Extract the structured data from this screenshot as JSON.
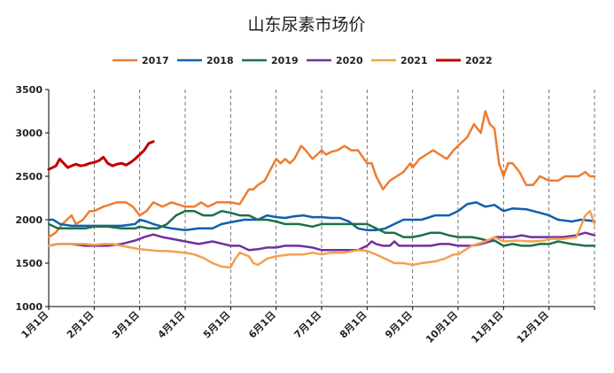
{
  "chart_data": {
    "type": "line",
    "title": "山东尿素市场价",
    "xlabel": "",
    "ylabel": "",
    "ylim": [
      1000,
      3500
    ],
    "yticks": [
      1000,
      1500,
      2000,
      2500,
      3000,
      3500
    ],
    "xlim_month": [
      1,
      13
    ],
    "grid": "vertical dashed at month starts",
    "legend_position": "top-center",
    "categories": [
      "1月1日",
      "2月1日",
      "3月1日",
      "4月1日",
      "5月1日",
      "6月1日",
      "7月1日",
      "8月1日",
      "9月1日",
      "10月1日",
      "11月1日",
      "12月1日"
    ],
    "series": [
      {
        "name": "2017",
        "color": "#ED7D31",
        "x": [
          1.0,
          1.15,
          1.3,
          1.5,
          1.6,
          1.75,
          1.9,
          2.0,
          2.2,
          2.5,
          2.7,
          2.85,
          3.0,
          3.15,
          3.3,
          3.5,
          3.7,
          4.0,
          4.2,
          4.35,
          4.5,
          4.7,
          5.0,
          5.2,
          5.4,
          5.5,
          5.6,
          5.75,
          5.9,
          6.0,
          6.1,
          6.2,
          6.3,
          6.4,
          6.55,
          6.65,
          6.8,
          6.9,
          7.0,
          7.1,
          7.2,
          7.35,
          7.5,
          7.65,
          7.8,
          8.0,
          8.1,
          8.2,
          8.35,
          8.5,
          8.65,
          8.8,
          8.95,
          9.0,
          9.15,
          9.3,
          9.45,
          9.6,
          9.75,
          9.9,
          10.0,
          10.2,
          10.35,
          10.5,
          10.6,
          10.7,
          10.8,
          10.9,
          11.0,
          11.1,
          11.2,
          11.35,
          11.5,
          11.65,
          11.8,
          12.0,
          12.2,
          12.35,
          12.5,
          12.65,
          12.8,
          12.9,
          13.0
        ],
        "values": [
          1800,
          1850,
          1950,
          2050,
          1950,
          2000,
          2100,
          2100,
          2150,
          2200,
          2200,
          2150,
          2050,
          2100,
          2200,
          2150,
          2200,
          2150,
          2150,
          2200,
          2150,
          2200,
          2200,
          2180,
          2350,
          2350,
          2400,
          2450,
          2600,
          2700,
          2650,
          2700,
          2650,
          2700,
          2850,
          2800,
          2700,
          2750,
          2800,
          2750,
          2780,
          2800,
          2850,
          2800,
          2800,
          2650,
          2650,
          2500,
          2350,
          2450,
          2500,
          2550,
          2650,
          2600,
          2700,
          2750,
          2800,
          2750,
          2700,
          2800,
          2850,
          2950,
          3100,
          3000,
          3250,
          3100,
          3050,
          2650,
          2500,
          2650,
          2650,
          2550,
          2400,
          2400,
          2500,
          2450,
          2450,
          2500,
          2500,
          2500,
          2550,
          2500,
          2500
        ]
      },
      {
        "name": "2018",
        "color": "#0F5FB0",
        "x": [
          1.0,
          1.1,
          1.25,
          1.5,
          1.75,
          2.0,
          2.3,
          2.6,
          2.9,
          3.0,
          3.15,
          3.3,
          3.5,
          3.7,
          4.0,
          4.3,
          4.6,
          4.8,
          5.0,
          5.3,
          5.6,
          5.8,
          6.0,
          6.2,
          6.4,
          6.6,
          6.8,
          7.0,
          7.2,
          7.4,
          7.6,
          7.8,
          8.0,
          8.2,
          8.4,
          8.6,
          8.8,
          9.0,
          9.2,
          9.5,
          9.8,
          10.0,
          10.2,
          10.4,
          10.6,
          10.8,
          11.0,
          11.2,
          11.5,
          11.8,
          12.0,
          12.2,
          12.5,
          12.7,
          12.9,
          13.0
        ],
        "values": [
          2000,
          2000,
          1950,
          1930,
          1930,
          1930,
          1930,
          1930,
          1950,
          2000,
          1980,
          1950,
          1920,
          1900,
          1880,
          1900,
          1900,
          1950,
          1970,
          2000,
          2000,
          2050,
          2030,
          2020,
          2040,
          2050,
          2030,
          2030,
          2020,
          2020,
          1980,
          1900,
          1880,
          1880,
          1900,
          1950,
          2000,
          2000,
          2000,
          2050,
          2050,
          2100,
          2180,
          2200,
          2150,
          2170,
          2100,
          2130,
          2120,
          2080,
          2050,
          2000,
          1980,
          2000,
          1990,
          1980
        ]
      },
      {
        "name": "2019",
        "color": "#1E7145",
        "x": [
          1.0,
          1.2,
          1.5,
          1.8,
          2.0,
          2.3,
          2.6,
          2.9,
          3.0,
          3.2,
          3.4,
          3.6,
          3.8,
          4.0,
          4.2,
          4.4,
          4.6,
          4.8,
          5.0,
          5.2,
          5.4,
          5.6,
          5.8,
          6.0,
          6.2,
          6.5,
          6.8,
          7.0,
          7.3,
          7.6,
          7.8,
          8.0,
          8.2,
          8.4,
          8.6,
          8.8,
          9.0,
          9.2,
          9.4,
          9.6,
          9.8,
          10.0,
          10.3,
          10.5,
          10.7,
          10.8,
          11.0,
          11.2,
          11.4,
          11.6,
          11.8,
          12.0,
          12.2,
          12.5,
          12.8,
          13.0
        ],
        "values": [
          1950,
          1900,
          1900,
          1900,
          1920,
          1920,
          1900,
          1900,
          1920,
          1900,
          1900,
          1950,
          2050,
          2100,
          2100,
          2050,
          2050,
          2100,
          2080,
          2050,
          2050,
          2000,
          2000,
          1980,
          1950,
          1950,
          1920,
          1950,
          1950,
          1950,
          1950,
          1950,
          1900,
          1850,
          1850,
          1800,
          1800,
          1820,
          1850,
          1850,
          1820,
          1800,
          1800,
          1780,
          1750,
          1760,
          1700,
          1720,
          1700,
          1700,
          1720,
          1720,
          1750,
          1720,
          1700,
          1700
        ]
      },
      {
        "name": "2020",
        "color": "#7030A0",
        "x": [
          1.0,
          1.2,
          1.5,
          1.8,
          2.0,
          2.3,
          2.6,
          2.9,
          3.0,
          3.1,
          3.3,
          3.5,
          3.8,
          4.0,
          4.3,
          4.6,
          5.0,
          5.2,
          5.4,
          5.6,
          5.8,
          6.0,
          6.2,
          6.5,
          6.8,
          7.0,
          7.3,
          7.6,
          7.8,
          8.0,
          8.1,
          8.2,
          8.35,
          8.5,
          8.6,
          8.7,
          8.85,
          9.0,
          9.2,
          9.4,
          9.6,
          9.8,
          10.0,
          10.3,
          10.5,
          10.7,
          10.8,
          11.0,
          11.2,
          11.4,
          11.6,
          11.8,
          12.0,
          12.3,
          12.6,
          12.8,
          13.0
        ],
        "values": [
          1700,
          1720,
          1720,
          1700,
          1700,
          1700,
          1720,
          1760,
          1780,
          1800,
          1830,
          1800,
          1770,
          1750,
          1720,
          1750,
          1700,
          1700,
          1650,
          1660,
          1680,
          1680,
          1700,
          1700,
          1680,
          1650,
          1650,
          1650,
          1650,
          1700,
          1750,
          1720,
          1700,
          1700,
          1750,
          1700,
          1700,
          1700,
          1700,
          1700,
          1720,
          1720,
          1700,
          1700,
          1720,
          1750,
          1800,
          1800,
          1800,
          1820,
          1800,
          1800,
          1800,
          1800,
          1820,
          1850,
          1820
        ]
      },
      {
        "name": "2021",
        "color": "#F4A04E",
        "x": [
          1.0,
          1.2,
          1.4,
          1.6,
          1.8,
          2.0,
          2.2,
          2.4,
          2.6,
          2.8,
          3.0,
          3.2,
          3.4,
          3.6,
          3.8,
          4.0,
          4.2,
          4.4,
          4.6,
          4.8,
          5.0,
          5.1,
          5.2,
          5.4,
          5.5,
          5.6,
          5.8,
          6.0,
          6.3,
          6.6,
          6.8,
          7.0,
          7.2,
          7.5,
          7.8,
          8.0,
          8.2,
          8.4,
          8.6,
          8.8,
          9.0,
          9.2,
          9.5,
          9.7,
          9.9,
          10.0,
          10.3,
          10.6,
          10.8,
          11.0,
          11.3,
          11.6,
          11.9,
          12.0,
          12.3,
          12.6,
          12.8,
          12.9,
          13.0
        ],
        "values": [
          1700,
          1720,
          1720,
          1720,
          1720,
          1710,
          1720,
          1720,
          1700,
          1680,
          1660,
          1650,
          1640,
          1640,
          1630,
          1620,
          1600,
          1560,
          1500,
          1460,
          1450,
          1550,
          1620,
          1580,
          1500,
          1480,
          1550,
          1580,
          1600,
          1600,
          1620,
          1600,
          1620,
          1620,
          1650,
          1640,
          1600,
          1550,
          1500,
          1500,
          1480,
          1500,
          1520,
          1550,
          1600,
          1600,
          1700,
          1750,
          1800,
          1750,
          1760,
          1750,
          1760,
          1780,
          1780,
          1800,
          2050,
          2100,
          1950
        ]
      },
      {
        "name": "2022",
        "color": "#C00000",
        "x": [
          1.0,
          1.08,
          1.16,
          1.24,
          1.33,
          1.42,
          1.5,
          1.6,
          1.7,
          1.8,
          1.9,
          2.0,
          2.1,
          2.2,
          2.3,
          2.4,
          2.5,
          2.6,
          2.7,
          2.8,
          2.9,
          3.0,
          3.1,
          3.2,
          3.3
        ],
        "values": [
          2580,
          2600,
          2620,
          2700,
          2650,
          2600,
          2620,
          2640,
          2620,
          2630,
          2650,
          2660,
          2680,
          2720,
          2650,
          2620,
          2640,
          2650,
          2630,
          2660,
          2700,
          2750,
          2800,
          2880,
          2900
        ]
      }
    ]
  }
}
